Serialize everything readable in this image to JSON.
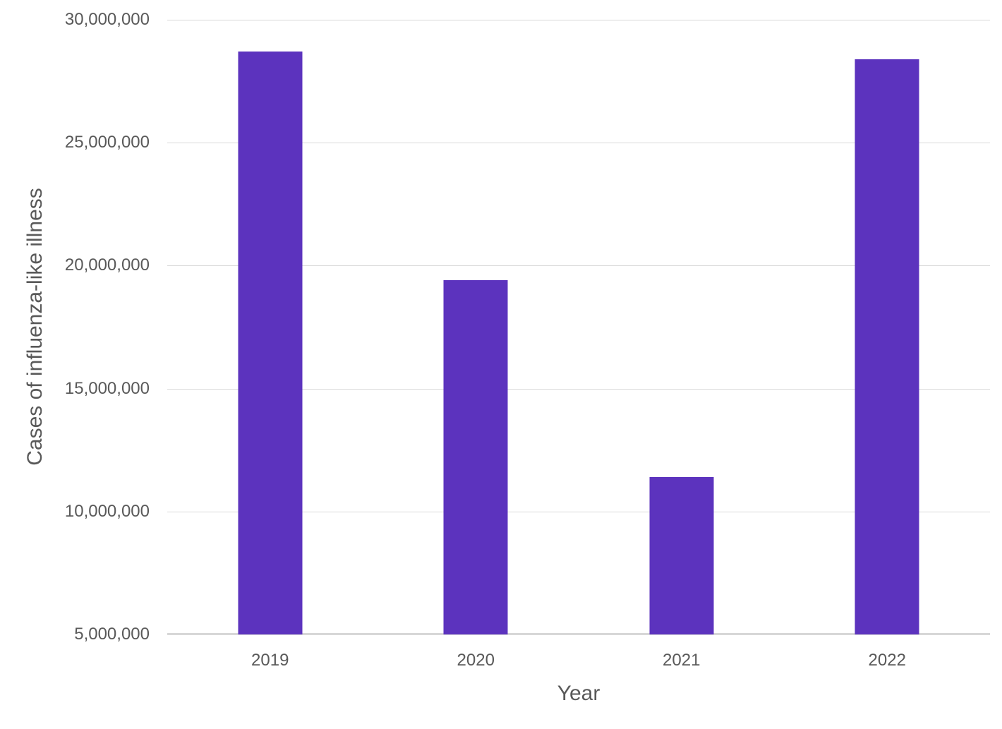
{
  "chart_data": {
    "type": "bar",
    "title": "",
    "categories": [
      "2019",
      "2020",
      "2021",
      "2022"
    ],
    "values": [
      28700000,
      19400000,
      11400000,
      28400000
    ],
    "xlabel": "Year",
    "ylabel": "Cases of influenza-like illness",
    "ylim": [
      5000000,
      30000000
    ],
    "yticks": [
      {
        "value": 30000000,
        "label": "30,000,000"
      },
      {
        "value": 25000000,
        "label": "25,000,000"
      },
      {
        "value": 20000000,
        "label": "20,000,000"
      },
      {
        "value": 15000000,
        "label": "15,000,000"
      },
      {
        "value": 10000000,
        "label": "10,000,000"
      },
      {
        "value": 5000000,
        "label": "5,000,000"
      }
    ],
    "grid": true,
    "legend": false,
    "bar_color": "#5c33be"
  },
  "colors": {
    "bar": "#5c33be",
    "text": "#595959",
    "gridline": "#d9d9d9",
    "background": "#ffffff"
  }
}
